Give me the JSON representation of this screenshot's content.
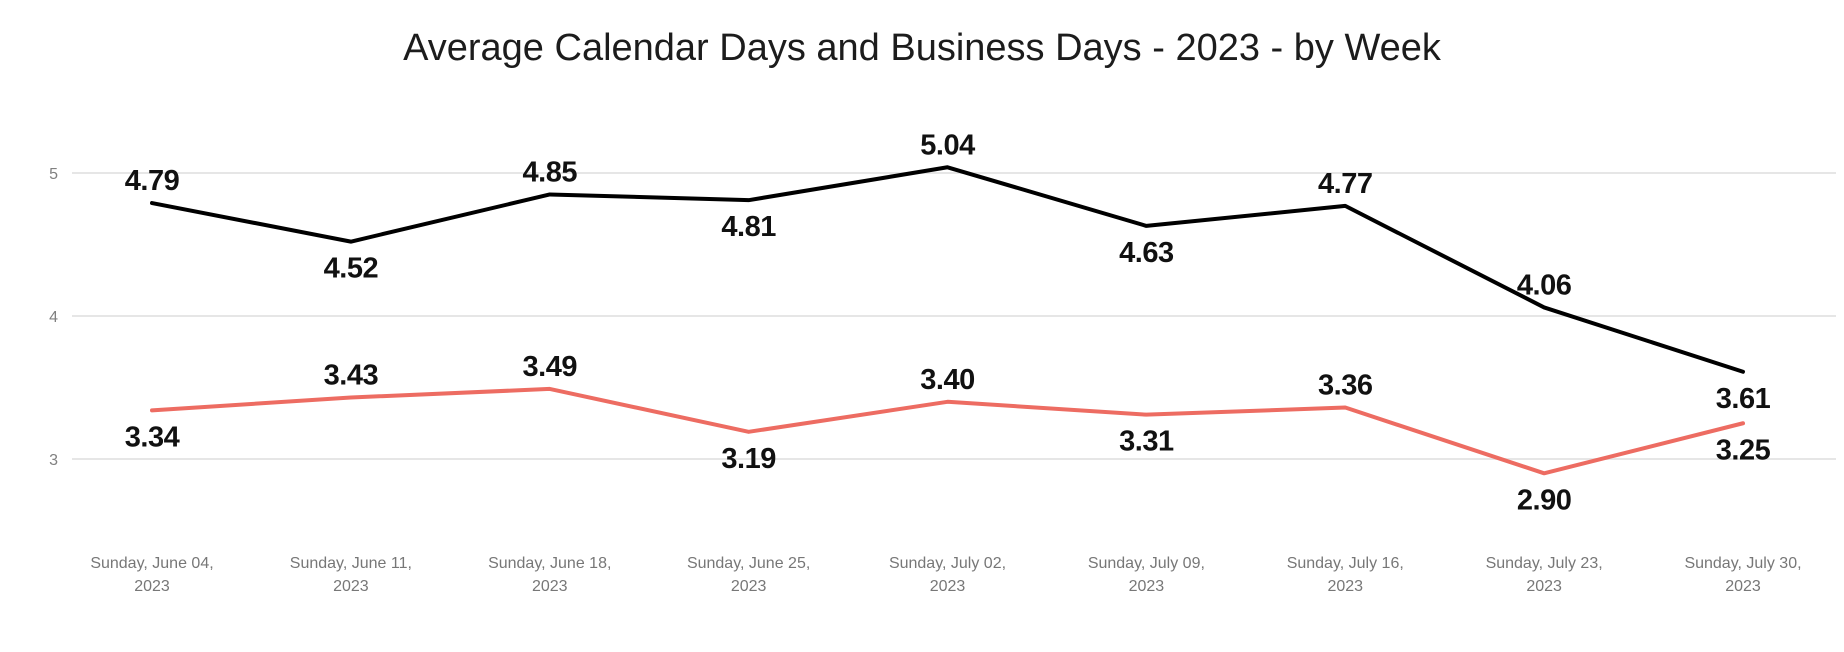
{
  "page": {
    "background": "#ffffff"
  },
  "chart_data": {
    "type": "line",
    "title": "Average Calendar Days and Business Days - 2023 - by Week",
    "categories": [
      "Sunday, June 04, 2023",
      "Sunday, June 11, 2023",
      "Sunday, June 18, 2023",
      "Sunday, June 25, 2023",
      "Sunday, July 02, 2023",
      "Sunday, July 09, 2023",
      "Sunday, July 16, 2023",
      "Sunday, July 23, 2023",
      "Sunday, July 30, 2023"
    ],
    "series": [
      {
        "name": "Calendar Days",
        "color": "#000000",
        "values": [
          4.79,
          4.52,
          4.85,
          4.81,
          5.04,
          4.63,
          4.77,
          4.06,
          3.61
        ],
        "label_positions": [
          "above",
          "below",
          "above",
          "below",
          "above",
          "below",
          "above",
          "above",
          "below"
        ]
      },
      {
        "name": "Business Days",
        "color": "#ED6C62",
        "values": [
          3.34,
          3.43,
          3.49,
          3.19,
          3.4,
          3.31,
          3.36,
          2.9,
          3.25
        ],
        "label_positions": [
          "below",
          "above",
          "above",
          "below",
          "above",
          "below",
          "above",
          "below",
          "below"
        ]
      }
    ],
    "y_axis": {
      "ticks": [
        3,
        4,
        5
      ],
      "min": 2.55,
      "max": 5.35,
      "gridline_color": "#E6E6E6",
      "tick_color": "#808080"
    },
    "x_axis": {
      "label_color": "#777777"
    },
    "data_labels": {
      "show": true,
      "color": "#111111",
      "decimals": 2
    },
    "legend": "none",
    "grid": "horizontal"
  }
}
